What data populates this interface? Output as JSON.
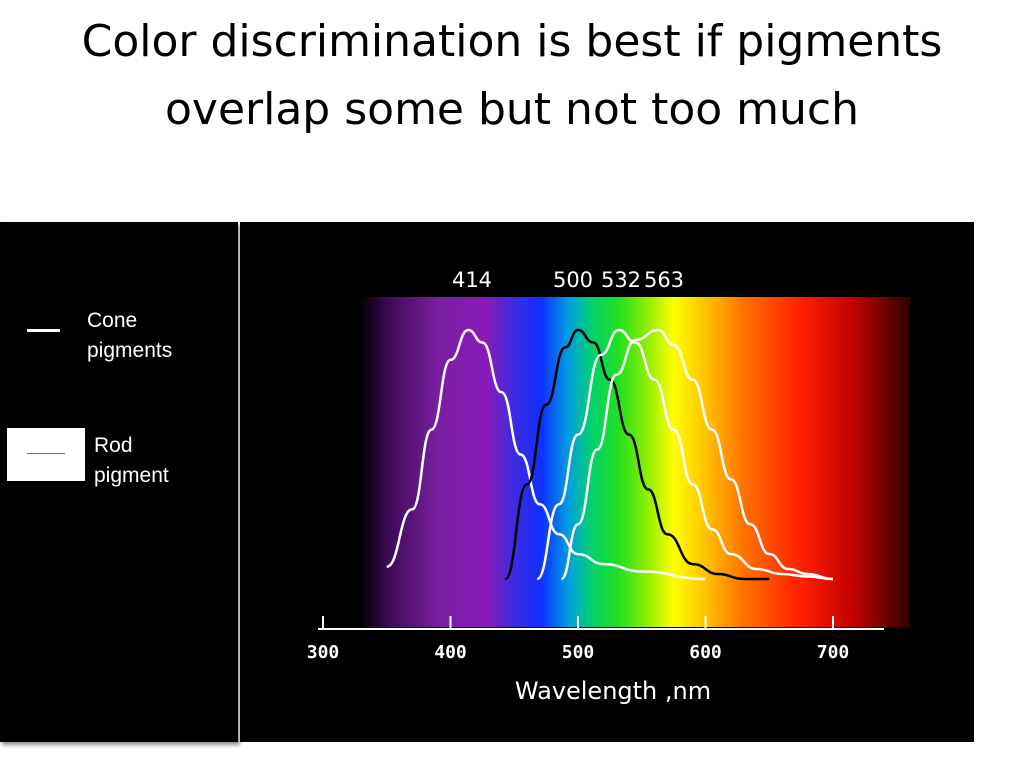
{
  "slide": {
    "title": "Color discrimination is best if pigments overlap some but not too much"
  },
  "legend": {
    "cone_label_line1": "Cone",
    "cone_label_line2": "pigments",
    "rod_label_line1": "Rod",
    "rod_label_line2": "pigment"
  },
  "chart_data": {
    "type": "line",
    "title": "",
    "xlabel": "Wavelength ,nm",
    "ylabel": "",
    "xlim": [
      300,
      700
    ],
    "ylim": [
      0,
      1
    ],
    "x_ticks": [
      300,
      400,
      500,
      600,
      700
    ],
    "x_tick_labels": [
      "300",
      "400",
      "500",
      "600",
      "700"
    ],
    "peak_labels": [
      "414",
      "500",
      "532",
      "563"
    ],
    "background": "visible spectrum gradient (violet to red)",
    "grid": false,
    "series": [
      {
        "color": "#ffffff",
        "x": [
          350,
          370,
          385,
          400,
          414,
          425,
          440,
          455,
          470,
          485,
          500,
          520,
          550,
          600
        ],
        "y": [
          0.05,
          0.28,
          0.6,
          0.88,
          1.0,
          0.95,
          0.75,
          0.5,
          0.3,
          0.18,
          0.1,
          0.06,
          0.03,
          0.0
        ]
      },
      {
        "color": "#000000",
        "x": [
          443,
          460,
          475,
          490,
          500,
          512,
          525,
          540,
          555,
          570,
          590,
          610,
          630,
          650
        ],
        "y": [
          0.0,
          0.38,
          0.7,
          0.93,
          1.0,
          0.95,
          0.8,
          0.58,
          0.36,
          0.18,
          0.06,
          0.02,
          0.0,
          0.0
        ]
      },
      {
        "color": "#ffffff",
        "x": [
          468,
          485,
          500,
          518,
          532,
          545,
          560,
          575,
          590,
          605,
          620,
          640,
          660,
          680,
          700
        ],
        "y": [
          0.0,
          0.3,
          0.58,
          0.9,
          1.0,
          0.95,
          0.8,
          0.6,
          0.38,
          0.2,
          0.1,
          0.04,
          0.02,
          0.01,
          0.0
        ]
      },
      {
        "color": "#ffffff",
        "x": [
          487,
          500,
          515,
          530,
          545,
          563,
          575,
          590,
          605,
          620,
          635,
          650,
          665,
          680,
          700
        ],
        "y": [
          0.0,
          0.22,
          0.52,
          0.82,
          0.96,
          1.0,
          0.94,
          0.8,
          0.6,
          0.4,
          0.22,
          0.1,
          0.04,
          0.02,
          0.0
        ]
      }
    ]
  },
  "colors": {
    "background": "#000000",
    "axis": "#ffffff",
    "rod_curve": "#000000",
    "cone_curves": "#ffffff"
  }
}
